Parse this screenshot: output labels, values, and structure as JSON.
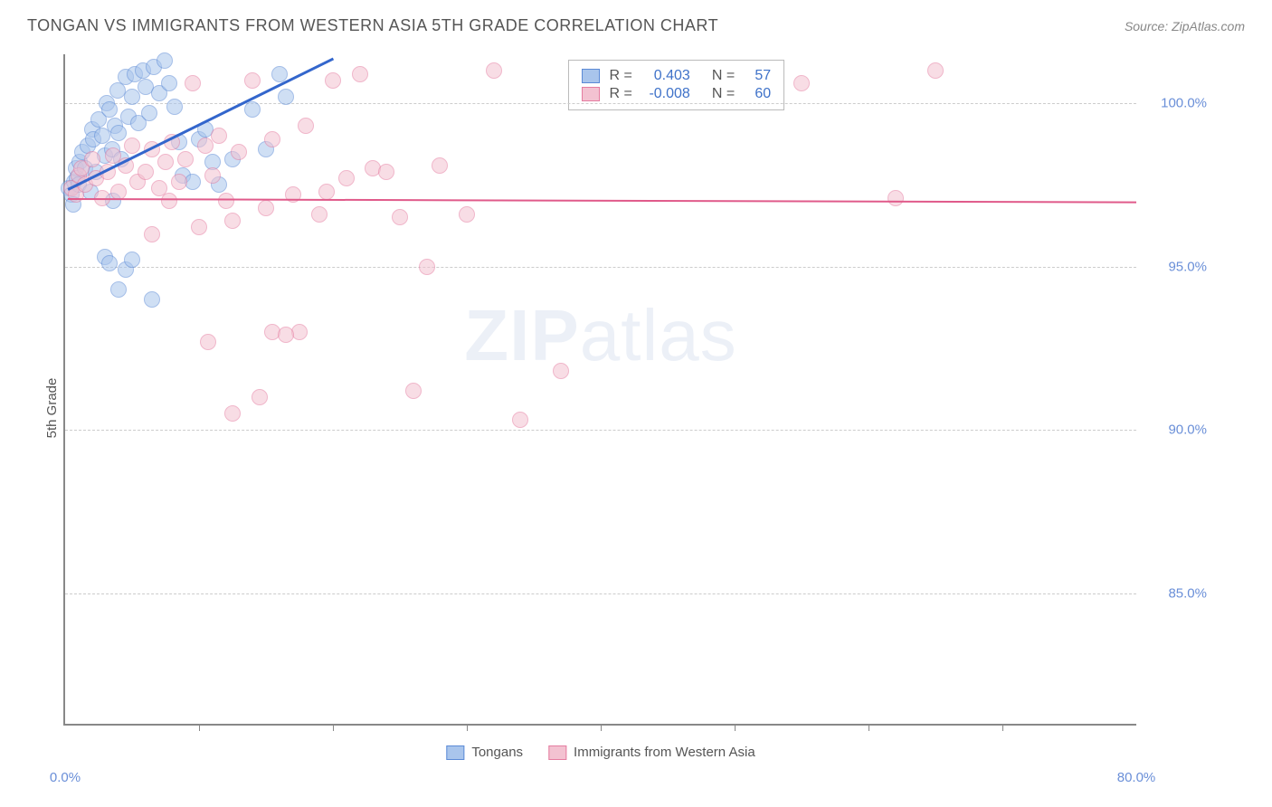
{
  "header": {
    "title": "TONGAN VS IMMIGRANTS FROM WESTERN ASIA 5TH GRADE CORRELATION CHART",
    "source": "Source: ZipAtlas.com"
  },
  "ylabel": "5th Grade",
  "watermark_zip": "ZIP",
  "watermark_atlas": "atlas",
  "chart": {
    "type": "scatter",
    "xlim": [
      0,
      80
    ],
    "ylim": [
      81,
      101.5
    ],
    "x_ticks": [
      0,
      80
    ],
    "x_tick_labels": [
      "0.0%",
      "80.0%"
    ],
    "x_minor_ticks": [
      10,
      20,
      30,
      40,
      50,
      60,
      70
    ],
    "y_ticks": [
      85,
      90,
      95,
      100
    ],
    "y_tick_labels": [
      "85.0%",
      "90.0%",
      "95.0%",
      "100.0%"
    ],
    "background_color": "#ffffff",
    "grid_color": "#cccccc",
    "axis_color": "#888888",
    "marker_radius": 9,
    "marker_opacity": 0.55,
    "series": [
      {
        "name": "Tongans",
        "color_fill": "#a9c5ec",
        "color_stroke": "#5b8ad6",
        "r_label": "R =",
        "r_value": "0.403",
        "n_label": "N =",
        "n_value": "57",
        "stat_color": "#3f72c9",
        "trend": {
          "x1": 0.2,
          "y1": 97.4,
          "x2": 20,
          "y2": 101.4,
          "color": "#3366cc",
          "width": 2.5
        },
        "points": [
          [
            0.3,
            97.4
          ],
          [
            0.5,
            97.2
          ],
          [
            0.6,
            96.9
          ],
          [
            0.7,
            97.6
          ],
          [
            0.8,
            98.0
          ],
          [
            0.9,
            97.7
          ],
          [
            1.0,
            97.5
          ],
          [
            1.1,
            98.2
          ],
          [
            1.3,
            98.5
          ],
          [
            1.5,
            98.0
          ],
          [
            1.7,
            98.7
          ],
          [
            1.9,
            97.3
          ],
          [
            2.0,
            99.2
          ],
          [
            2.1,
            98.9
          ],
          [
            2.3,
            97.9
          ],
          [
            2.5,
            99.5
          ],
          [
            2.8,
            99.0
          ],
          [
            3.0,
            98.4
          ],
          [
            3.1,
            100.0
          ],
          [
            3.3,
            99.8
          ],
          [
            3.5,
            98.6
          ],
          [
            3.7,
            99.3
          ],
          [
            3.9,
            100.4
          ],
          [
            4.0,
            99.1
          ],
          [
            4.2,
            98.3
          ],
          [
            4.5,
            100.8
          ],
          [
            4.7,
            99.6
          ],
          [
            5.0,
            100.2
          ],
          [
            5.2,
            100.9
          ],
          [
            5.5,
            99.4
          ],
          [
            5.8,
            101.0
          ],
          [
            6.0,
            100.5
          ],
          [
            6.3,
            99.7
          ],
          [
            6.6,
            101.1
          ],
          [
            7.0,
            100.3
          ],
          [
            7.4,
            101.3
          ],
          [
            7.8,
            100.6
          ],
          [
            8.2,
            99.9
          ],
          [
            8.8,
            97.8
          ],
          [
            8.5,
            98.8
          ],
          [
            9.5,
            97.6
          ],
          [
            10.0,
            98.9
          ],
          [
            10.5,
            99.2
          ],
          [
            11.0,
            98.2
          ],
          [
            11.5,
            97.5
          ],
          [
            12.5,
            98.3
          ],
          [
            14.0,
            99.8
          ],
          [
            15.0,
            98.6
          ],
          [
            16.5,
            100.2
          ],
          [
            3.0,
            95.3
          ],
          [
            3.3,
            95.1
          ],
          [
            3.6,
            97.0
          ],
          [
            4.0,
            94.3
          ],
          [
            4.5,
            94.9
          ],
          [
            5.0,
            95.2
          ],
          [
            6.5,
            94.0
          ],
          [
            16.0,
            100.9
          ]
        ]
      },
      {
        "name": "Immigrants from Western Asia",
        "color_fill": "#f3c2d1",
        "color_stroke": "#e57ca0",
        "r_label": "R =",
        "r_value": "-0.008",
        "n_label": "N =",
        "n_value": "60",
        "stat_color": "#3f72c9",
        "trend": {
          "x1": 0.2,
          "y1": 97.1,
          "x2": 80,
          "y2": 97.0,
          "color": "#e05a8a",
          "width": 2
        },
        "points": [
          [
            0.5,
            97.4
          ],
          [
            0.8,
            97.2
          ],
          [
            1.0,
            97.8
          ],
          [
            1.2,
            98.0
          ],
          [
            1.5,
            97.5
          ],
          [
            2.0,
            98.3
          ],
          [
            2.3,
            97.7
          ],
          [
            2.8,
            97.1
          ],
          [
            3.2,
            97.9
          ],
          [
            3.6,
            98.4
          ],
          [
            4.0,
            97.3
          ],
          [
            4.5,
            98.1
          ],
          [
            5.0,
            98.7
          ],
          [
            5.4,
            97.6
          ],
          [
            6.0,
            97.9
          ],
          [
            6.5,
            98.6
          ],
          [
            7.0,
            97.4
          ],
          [
            7.5,
            98.2
          ],
          [
            8.0,
            98.8
          ],
          [
            8.5,
            97.6
          ],
          [
            9.0,
            98.3
          ],
          [
            9.5,
            100.6
          ],
          [
            10.0,
            96.2
          ],
          [
            10.5,
            98.7
          ],
          [
            11.0,
            97.8
          ],
          [
            11.5,
            99.0
          ],
          [
            12.0,
            97.0
          ],
          [
            12.5,
            96.4
          ],
          [
            13.0,
            98.5
          ],
          [
            14.0,
            100.7
          ],
          [
            15.0,
            96.8
          ],
          [
            15.5,
            98.9
          ],
          [
            17.0,
            97.2
          ],
          [
            18.0,
            99.3
          ],
          [
            19.0,
            96.6
          ],
          [
            20.0,
            100.7
          ],
          [
            21.0,
            97.7
          ],
          [
            22.0,
            100.9
          ],
          [
            23.0,
            98.0
          ],
          [
            24.0,
            97.9
          ],
          [
            25.0,
            96.5
          ],
          [
            27.0,
            95.0
          ],
          [
            28.0,
            98.1
          ],
          [
            30.0,
            96.6
          ],
          [
            32.0,
            101.0
          ],
          [
            34.0,
            90.3
          ],
          [
            26.0,
            91.2
          ],
          [
            14.5,
            91.0
          ],
          [
            10.7,
            92.7
          ],
          [
            15.5,
            93.0
          ],
          [
            17.5,
            93.0
          ],
          [
            55.0,
            100.6
          ],
          [
            62.0,
            97.1
          ],
          [
            65.0,
            101.0
          ],
          [
            37.0,
            91.8
          ],
          [
            12.5,
            90.5
          ],
          [
            6.5,
            96.0
          ],
          [
            7.8,
            97.0
          ],
          [
            19.5,
            97.3
          ],
          [
            16.5,
            92.9
          ]
        ]
      }
    ],
    "legend_bottom": [
      {
        "swatch_fill": "#a9c5ec",
        "swatch_stroke": "#5b8ad6",
        "label": "Tongans"
      },
      {
        "swatch_fill": "#f3c2d1",
        "swatch_stroke": "#e57ca0",
        "label": "Immigrants from Western Asia"
      }
    ]
  }
}
